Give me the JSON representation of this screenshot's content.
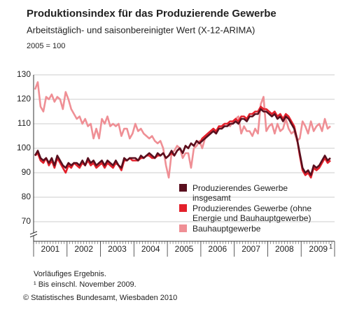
{
  "chart_data": {
    "type": "line",
    "title": "Produktionsindex für das Produzierende Gewerbe",
    "subtitle": "Arbeitstäglich- und saisonbereinigter Wert (X-12-ARIMA)",
    "unit_note": "2005 = 100",
    "footnotes": [
      "Vorläufiges Ergebnis.",
      "¹ Bis einschl. November 2009."
    ],
    "source": "© Statistisches Bundesamt, Wiesbaden 2010",
    "x_footnote_mark": "1",
    "categories": [
      null,
      null,
      null,
      null,
      null,
      "2001",
      null,
      null,
      null,
      null,
      null,
      null,
      null,
      null,
      null,
      null,
      null,
      "2002",
      null,
      null,
      null,
      null,
      null,
      null,
      null,
      null,
      null,
      null,
      null,
      "2003",
      null,
      null,
      null,
      null,
      null,
      null,
      null,
      null,
      null,
      null,
      null,
      "2004",
      null,
      null,
      null,
      null,
      null,
      null,
      null,
      null,
      null,
      null,
      null,
      "2005",
      null,
      null,
      null,
      null,
      null,
      null,
      null,
      null,
      null,
      null,
      null,
      "2006",
      null,
      null,
      null,
      null,
      null,
      null,
      null,
      null,
      null,
      null,
      null,
      "2007",
      null,
      null,
      null,
      null,
      null,
      null,
      null,
      null,
      null,
      null,
      null,
      "2008",
      null,
      null,
      null,
      null,
      null,
      null,
      null,
      null,
      null,
      null,
      null,
      "2009",
      null,
      null,
      null,
      null,
      null
    ],
    "ylim": [
      62,
      130
    ],
    "yticks": [
      70,
      80,
      90,
      100,
      110,
      120,
      130
    ],
    "grid": true,
    "series": [
      {
        "name": "Produzierendes Gewerbe insgesamt",
        "color": "#5a0f1e",
        "values": [
          97,
          99,
          96,
          95,
          96,
          94,
          96,
          93,
          97,
          95,
          93,
          92,
          94,
          93,
          94,
          94,
          93,
          95,
          93,
          96,
          94,
          95,
          93,
          94,
          95,
          93,
          95,
          94,
          93,
          95,
          93,
          92,
          96,
          95,
          96,
          96,
          96,
          95,
          97,
          96,
          97,
          98,
          97,
          96,
          98,
          97,
          98,
          96,
          97,
          99,
          97,
          99,
          100,
          98,
          101,
          100,
          102,
          101,
          103,
          102,
          103,
          104,
          105,
          106,
          107,
          106,
          108,
          108,
          109,
          109,
          110,
          110,
          111,
          110,
          112,
          112,
          111,
          113,
          113,
          114,
          114,
          116,
          115,
          115,
          114,
          113,
          114,
          112,
          113,
          111,
          113,
          112,
          110,
          108,
          104,
          98,
          92,
          90,
          91,
          89,
          93,
          92,
          93,
          95,
          97,
          95,
          96
        ]
      },
      {
        "name": "Produzierendes Gewerbe (ohne Energie und Bauhauptgewerbe)",
        "color": "#e3202b",
        "values": [
          97,
          98,
          95,
          94,
          96,
          93,
          95,
          92,
          96,
          94,
          92,
          90,
          93,
          92,
          94,
          93,
          92,
          94,
          93,
          95,
          93,
          94,
          92,
          93,
          94,
          92,
          94,
          93,
          92,
          94,
          93,
          91,
          95,
          95,
          96,
          95,
          95,
          95,
          96,
          96,
          97,
          97,
          96,
          96,
          97,
          97,
          98,
          96,
          97,
          98,
          97,
          99,
          100,
          98,
          101,
          100,
          102,
          101,
          103,
          102,
          104,
          105,
          106,
          107,
          108,
          107,
          109,
          109,
          110,
          110,
          111,
          111,
          112,
          111,
          113,
          113,
          112,
          114,
          114,
          115,
          115,
          117,
          116,
          116,
          115,
          114,
          115,
          113,
          114,
          112,
          114,
          113,
          111,
          109,
          104,
          97,
          91,
          89,
          90,
          88,
          92,
          91,
          92,
          94,
          96,
          94,
          95
        ]
      },
      {
        "name": "Bauhauptgewerbe",
        "color": "#ef8f95",
        "values": [
          124,
          127,
          117,
          115,
          121,
          120,
          122,
          119,
          121,
          120,
          116,
          123,
          120,
          116,
          114,
          112,
          113,
          110,
          112,
          109,
          110,
          104,
          108,
          104,
          112,
          110,
          113,
          109,
          110,
          109,
          110,
          105,
          108,
          108,
          104,
          106,
          110,
          107,
          108,
          106,
          105,
          104,
          105,
          103,
          102,
          103,
          100,
          93,
          88,
          98,
          99,
          101,
          100,
          96,
          98,
          98,
          92,
          100,
          101,
          103,
          100,
          104,
          106,
          107,
          108,
          106,
          109,
          108,
          110,
          110,
          109,
          111,
          112,
          113,
          106,
          109,
          107,
          107,
          105,
          108,
          106,
          118,
          121,
          107,
          109,
          110,
          106,
          110,
          107,
          108,
          112,
          108,
          106,
          107,
          103,
          104,
          111,
          109,
          106,
          111,
          107,
          109,
          110,
          107,
          112,
          108,
          109
        ]
      }
    ]
  }
}
